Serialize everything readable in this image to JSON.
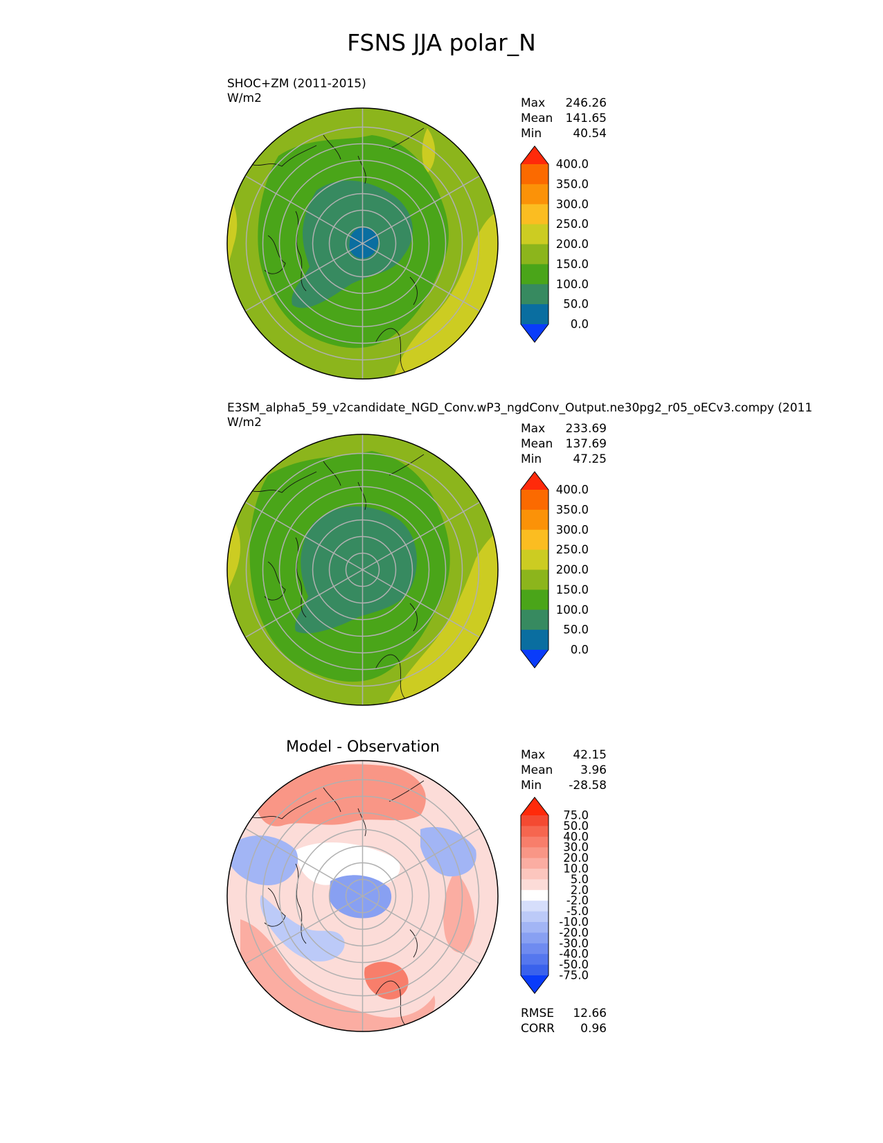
{
  "figure": {
    "title": "FSNS JJA polar_N"
  },
  "panels": [
    {
      "title": "SHOC+ZM (2011-2015)",
      "units": "W/m2",
      "stats": {
        "max": "246.26",
        "mean": "141.65",
        "min": "40.54"
      },
      "stat_labels": {
        "max": "Max",
        "mean": "Mean",
        "min": "Min"
      }
    },
    {
      "title": "E3SM_alpha5_59_v2candidate_NGD_Conv.wP3_ngdConv_Output.ne30pg2_r05_oECv3.compy (2011",
      "units": "W/m2",
      "stats": {
        "max": "233.69",
        "mean": "137.69",
        "min": "47.25"
      },
      "stat_labels": {
        "max": "Max",
        "mean": "Mean",
        "min": "Min"
      }
    },
    {
      "title": "Model - Observation",
      "stats": {
        "max": "42.15",
        "mean": "3.96",
        "min": "-28.58"
      },
      "stat_labels": {
        "max": "Max",
        "mean": "Mean",
        "min": "Min"
      },
      "extra": {
        "rmse_label": "RMSE",
        "rmse": "12.66",
        "corr_label": "CORR",
        "corr": "0.96"
      }
    }
  ],
  "chart_data": [
    {
      "type": "heatmap",
      "projection": "north polar stereographic",
      "title": "SHOC+ZM (2011-2015)",
      "variable": "FSNS",
      "units": "W/m2",
      "colorbar": {
        "levels": [
          "0.0",
          "50.0",
          "100.0",
          "150.0",
          "200.0",
          "250.0",
          "300.0",
          "350.0",
          "400.0"
        ],
        "colors": [
          "#0a3cfa",
          "#0a6ea0",
          "#378a60",
          "#4aa519",
          "#8cb51c",
          "#cccc22",
          "#fbbd21",
          "#fb9208",
          "#fb6a00",
          "#ff2a0a"
        ],
        "extend": "both"
      },
      "rings": [
        {
          "value_range": "200-250",
          "color": "#cccc22"
        },
        {
          "value_range": "150-200",
          "color": "#8cb51c"
        },
        {
          "value_range": "100-150",
          "color": "#4aa519"
        },
        {
          "value_range": "50-100",
          "color": "#378a60"
        },
        {
          "value_range": "0-50",
          "color": "#0a6ea0"
        }
      ]
    },
    {
      "type": "heatmap",
      "projection": "north polar stereographic",
      "title": "E3SM_alpha5_59_v2candidate_NGD_Conv.wP3_ngdConv_Output.ne30pg2_r05_oECv3.compy (2011",
      "variable": "FSNS",
      "units": "W/m2",
      "colorbar": {
        "levels": [
          "0.0",
          "50.0",
          "100.0",
          "150.0",
          "200.0",
          "250.0",
          "300.0",
          "350.0",
          "400.0"
        ],
        "colors": [
          "#0a3cfa",
          "#0a6ea0",
          "#378a60",
          "#4aa519",
          "#8cb51c",
          "#cccc22",
          "#fbbd21",
          "#fb9208",
          "#fb6a00",
          "#ff2a0a"
        ],
        "extend": "both"
      }
    },
    {
      "type": "heatmap",
      "projection": "north polar stereographic",
      "title": "Model - Observation",
      "variable": "FSNS difference",
      "colorbar": {
        "levels": [
          "-75.0",
          "-50.0",
          "-40.0",
          "-30.0",
          "-20.0",
          "-10.0",
          "-5.0",
          "-2.0",
          "2.0",
          "5.0",
          "10.0",
          "20.0",
          "30.0",
          "40.0",
          "50.0",
          "75.0"
        ],
        "colors": [
          "#0a3cfa",
          "#3a62ec",
          "#5577ee",
          "#6f8bf0",
          "#88a0f2",
          "#a2b5f5",
          "#bccaf8",
          "#d6defb",
          "#ffffff",
          "#fcdcd8",
          "#fcc6be",
          "#fbada2",
          "#f99686",
          "#f87e6b",
          "#f6664f",
          "#f44a32",
          "#ff2a0a"
        ],
        "extend": "both"
      },
      "metrics": {
        "rmse": 12.66,
        "corr": 0.96
      }
    }
  ]
}
